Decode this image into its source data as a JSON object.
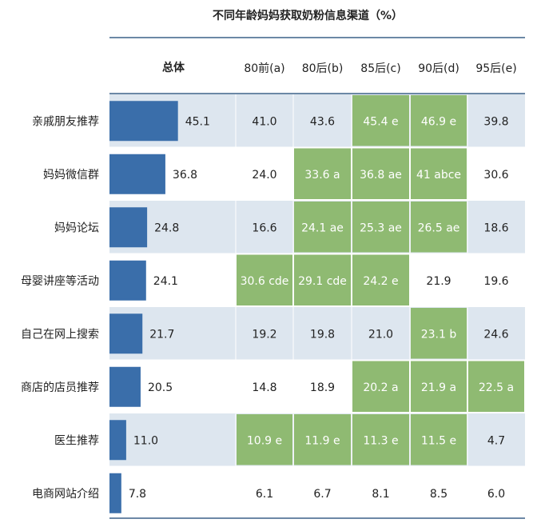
{
  "chart_data": {
    "type": "table",
    "title": "不同年龄妈妈获取奶粉信息渠道（%）",
    "total_header": "总体",
    "columns": [
      "80前(a)",
      "80后(b)",
      "85后(c)",
      "90后(d)",
      "95后(e)"
    ],
    "rows": [
      {
        "label": "亲戚朋友推荐",
        "total": 45.1,
        "cells": [
          "41.0",
          "43.6",
          "45.4 e",
          "46.9 e",
          "39.8"
        ],
        "highlight": [
          false,
          false,
          true,
          true,
          false
        ]
      },
      {
        "label": "妈妈微信群",
        "total": 36.8,
        "cells": [
          "24.0",
          "33.6 a",
          "36.8 ae",
          "41 abce",
          "30.6"
        ],
        "highlight": [
          false,
          true,
          true,
          true,
          false
        ]
      },
      {
        "label": "妈妈论坛",
        "total": 24.8,
        "cells": [
          "16.6",
          "24.1 ae",
          "25.3 ae",
          "26.5 ae",
          "18.6"
        ],
        "highlight": [
          false,
          true,
          true,
          true,
          false
        ]
      },
      {
        "label": "母婴讲座等活动",
        "total": 24.1,
        "cells": [
          "30.6 cde",
          "29.1 cde",
          "24.2 e",
          "21.9",
          "19.6"
        ],
        "highlight": [
          true,
          true,
          true,
          false,
          false
        ]
      },
      {
        "label": "自己在网上搜索",
        "total": 21.7,
        "cells": [
          "19.2",
          "19.8",
          "21.0",
          "23.1 b",
          "24.6"
        ],
        "highlight": [
          false,
          false,
          false,
          true,
          false
        ]
      },
      {
        "label": "商店的店员推荐",
        "total": 20.5,
        "cells": [
          "14.8",
          "18.9",
          "20.2 a",
          "21.9 a",
          "22.5 a"
        ],
        "highlight": [
          false,
          false,
          true,
          true,
          true
        ]
      },
      {
        "label": "医生推荐",
        "total": 11.0,
        "cells": [
          "10.9 e",
          "11.9 e",
          "11.3 e",
          "11.5 e",
          "4.7"
        ],
        "highlight": [
          true,
          true,
          true,
          true,
          false
        ]
      },
      {
        "label": "电商网站介绍",
        "total": 7.8,
        "cells": [
          "6.1",
          "6.7",
          "8.1",
          "8.5",
          "6.0"
        ],
        "highlight": [
          false,
          false,
          false,
          false,
          false
        ]
      }
    ],
    "bar_scale_max": 100,
    "colors": {
      "bar": "#3a6eaa",
      "stripe": "#dde6ef",
      "highlight": "#8fba72",
      "highlight_text": "#ffffff",
      "text": "#222222",
      "rule": "#3b6189"
    }
  }
}
